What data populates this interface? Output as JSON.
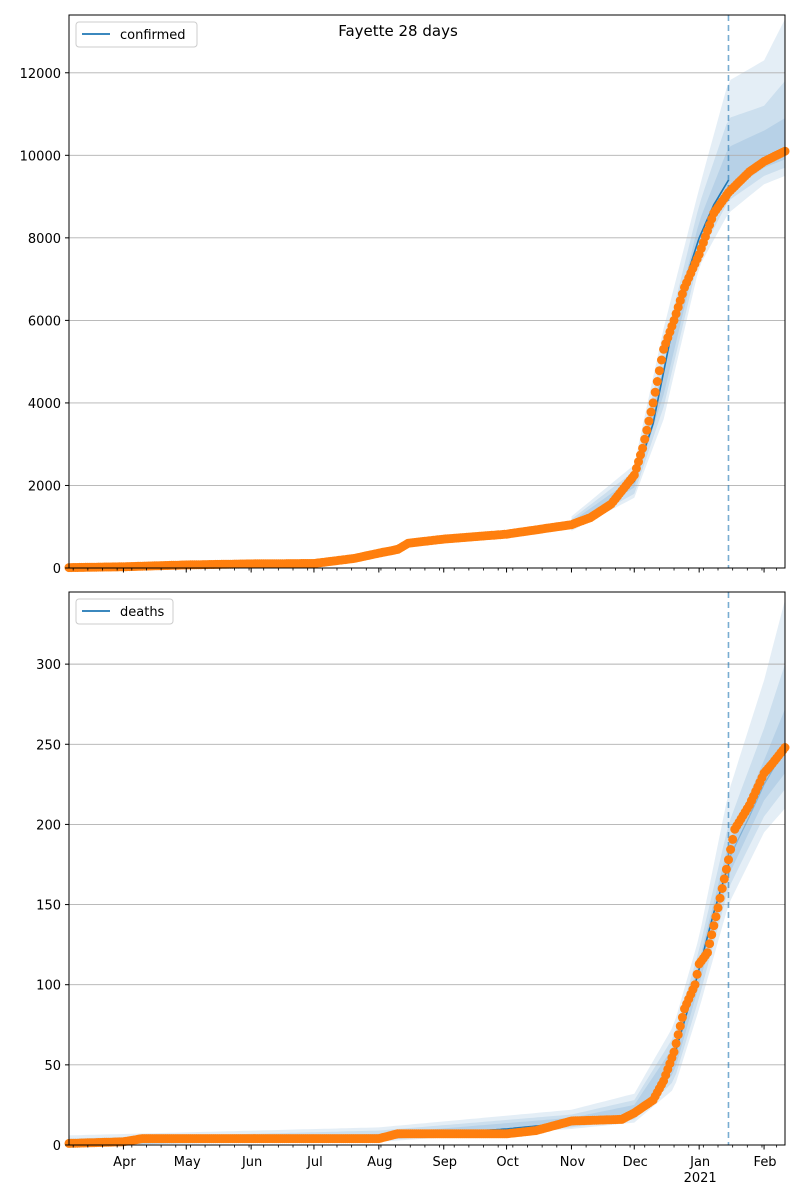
{
  "title": "Fayette 28 days",
  "colors": {
    "model_line": "#1f77b4",
    "observed": "#ff7f0e",
    "band": "#1f77b4",
    "grid": "#b0b0b0",
    "forecast_line": "#1f77b4"
  },
  "x_axis": {
    "month_labels": [
      "Apr",
      "May",
      "Jun",
      "Jul",
      "Aug",
      "Sep",
      "Oct",
      "Nov",
      "Dec",
      "Jan",
      "Feb"
    ],
    "year_label": "2021",
    "range": [
      "2020-03-06",
      "2021-02-11"
    ]
  },
  "forecast_start": "2021-01-15",
  "chart_data": [
    {
      "type": "line",
      "legend": "confirmed",
      "legend_position": "top-left",
      "grid": "y",
      "ylim": [
        0,
        13400
      ],
      "yticks": [
        0,
        2000,
        4000,
        6000,
        8000,
        10000,
        12000
      ],
      "model_points": [
        [
          "2020-03-06",
          0
        ],
        [
          "2020-04-01",
          25
        ],
        [
          "2020-05-01",
          70
        ],
        [
          "2020-06-01",
          95
        ],
        [
          "2020-07-01",
          110
        ],
        [
          "2020-07-20",
          230
        ],
        [
          "2020-08-01",
          400
        ],
        [
          "2020-08-15",
          620
        ],
        [
          "2020-09-01",
          700
        ],
        [
          "2020-10-01",
          830
        ],
        [
          "2020-11-01",
          1060
        ],
        [
          "2020-11-15",
          1330
        ],
        [
          "2020-12-01",
          2100
        ],
        [
          "2020-12-10",
          3500
        ],
        [
          "2020-12-18",
          5500
        ],
        [
          "2020-12-25",
          6900
        ],
        [
          "2021-01-01",
          8000
        ],
        [
          "2021-01-08",
          8800
        ],
        [
          "2021-01-15",
          9400
        ]
      ],
      "forecast_median": [
        [
          "2021-01-15",
          9200
        ],
        [
          "2021-01-25",
          9600
        ],
        [
          "2021-02-01",
          9850
        ],
        [
          "2021-02-11",
          10100
        ]
      ],
      "bands": [
        {
          "dates": [
            "2020-11-01",
            "2020-12-01",
            "2020-12-15",
            "2021-01-01",
            "2021-01-15",
            "2021-02-01",
            "2021-02-11"
          ],
          "low": [
            900,
            1700,
            3600,
            7300,
            8600,
            9300,
            9500
          ],
          "high": [
            1250,
            2500,
            5800,
            9200,
            11800,
            12300,
            13300
          ]
        },
        {
          "dates": [
            "2020-11-01",
            "2020-12-01",
            "2020-12-15",
            "2021-01-01",
            "2021-01-15",
            "2021-02-01",
            "2021-02-11"
          ],
          "low": [
            950,
            1800,
            3900,
            7550,
            8900,
            9500,
            9700
          ],
          "high": [
            1180,
            2350,
            5300,
            8800,
            10900,
            11200,
            11800
          ]
        },
        {
          "dates": [
            "2020-11-01",
            "2020-12-01",
            "2020-12-15",
            "2021-01-01",
            "2021-01-15",
            "2021-02-01",
            "2021-02-11"
          ],
          "low": [
            1000,
            1950,
            4200,
            7800,
            9100,
            9700,
            9900
          ],
          "high": [
            1120,
            2200,
            4900,
            8400,
            10200,
            10600,
            10900
          ]
        }
      ],
      "observed": {
        "key_dates": [
          "2020-03-06",
          "2020-04-01",
          "2020-05-01",
          "2020-06-01",
          "2020-07-01",
          "2020-07-20",
          "2020-08-01",
          "2020-08-10",
          "2020-08-15",
          "2020-09-01",
          "2020-10-01",
          "2020-11-01",
          "2020-11-10",
          "2020-11-20",
          "2020-12-01",
          "2020-12-05",
          "2020-12-10",
          "2020-12-15",
          "2020-12-20",
          "2020-12-25",
          "2021-01-01",
          "2021-01-08",
          "2021-01-15",
          "2021-01-25",
          "2021-02-01",
          "2021-02-11"
        ],
        "key_values": [
          10,
          30,
          75,
          100,
          110,
          230,
          360,
          450,
          600,
          700,
          820,
          1050,
          1220,
          1550,
          2250,
          2900,
          4000,
          5300,
          6000,
          6800,
          7600,
          8600,
          9100,
          9600,
          9850,
          10100
        ]
      }
    },
    {
      "type": "line",
      "legend": "deaths",
      "legend_position": "top-left",
      "grid": "y",
      "ylim": [
        0,
        345
      ],
      "yticks": [
        0,
        50,
        100,
        150,
        200,
        250,
        300
      ],
      "model_points": [
        [
          "2020-03-06",
          1
        ],
        [
          "2020-04-10",
          2
        ],
        [
          "2020-05-01",
          3
        ],
        [
          "2020-08-01",
          4
        ],
        [
          "2020-08-15",
          6
        ],
        [
          "2020-10-01",
          10
        ],
        [
          "2020-11-01",
          14
        ],
        [
          "2020-11-25",
          17
        ],
        [
          "2020-12-01",
          20
        ],
        [
          "2020-12-10",
          30
        ],
        [
          "2020-12-20",
          55
        ],
        [
          "2020-12-30",
          100
        ],
        [
          "2021-01-08",
          145
        ],
        [
          "2021-01-15",
          175
        ]
      ],
      "forecast_median": [
        [
          "2021-01-15",
          178
        ],
        [
          "2021-01-25",
          205
        ],
        [
          "2021-02-01",
          225
        ],
        [
          "2021-02-11",
          247
        ]
      ],
      "bands": [
        {
          "dates": [
            "2020-03-06",
            "2020-08-01",
            "2020-11-01",
            "2020-12-01",
            "2020-12-20",
            "2021-01-01",
            "2021-01-15",
            "2021-02-01",
            "2021-02-11"
          ],
          "low": [
            0,
            2,
            10,
            14,
            35,
            85,
            150,
            195,
            210
          ],
          "high": [
            6,
            11,
            22,
            32,
            75,
            130,
            220,
            290,
            340
          ]
        },
        {
          "dates": [
            "2020-03-06",
            "2020-08-01",
            "2020-11-01",
            "2020-12-01",
            "2020-12-20",
            "2021-01-01",
            "2021-01-15",
            "2021-02-01",
            "2021-02-11"
          ],
          "low": [
            0,
            3,
            11,
            16,
            40,
            92,
            160,
            205,
            222
          ],
          "high": [
            4,
            9,
            19,
            28,
            68,
            122,
            200,
            260,
            300
          ]
        },
        {
          "dates": [
            "2020-03-06",
            "2020-08-01",
            "2020-11-01",
            "2020-12-01",
            "2020-12-20",
            "2021-01-01",
            "2021-01-15",
            "2021-02-01",
            "2021-02-11"
          ],
          "low": [
            0,
            3,
            12,
            18,
            45,
            100,
            168,
            215,
            232
          ],
          "high": [
            3,
            7,
            17,
            25,
            62,
            115,
            188,
            240,
            272
          ]
        }
      ],
      "observed": {
        "key_dates": [
          "2020-03-06",
          "2020-04-01",
          "2020-04-10",
          "2020-08-01",
          "2020-08-10",
          "2020-09-01",
          "2020-10-01",
          "2020-10-15",
          "2020-11-01",
          "2020-11-25",
          "2020-12-01",
          "2020-12-10",
          "2020-12-15",
          "2020-12-20",
          "2020-12-25",
          "2020-12-30",
          "2021-01-01",
          "2021-01-05",
          "2021-01-10",
          "2021-01-15",
          "2021-01-18",
          "2021-01-25",
          "2021-02-01",
          "2021-02-05",
          "2021-02-11"
        ],
        "key_values": [
          1,
          2,
          4,
          4,
          7,
          7,
          7,
          9,
          15,
          16,
          20,
          28,
          40,
          58,
          85,
          100,
          113,
          120,
          148,
          178,
          197,
          212,
          232,
          238,
          248
        ]
      }
    }
  ]
}
